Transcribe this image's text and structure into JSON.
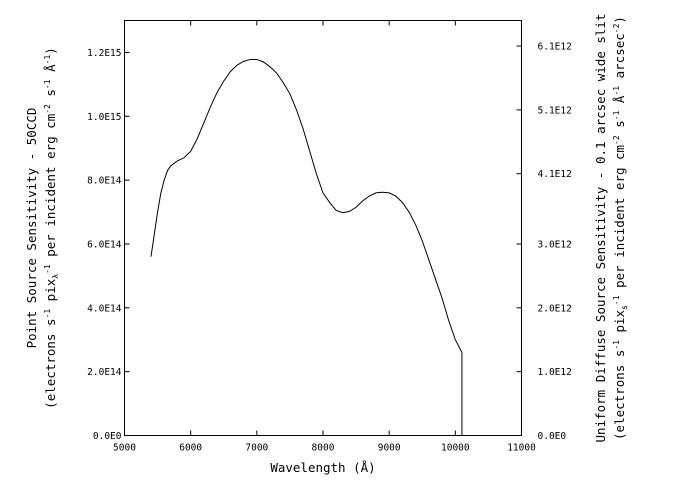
{
  "chart_data": {
    "type": "line",
    "xlabel": "Wavelength (Å)",
    "ylabel_left": {
      "line1": "Point Source Sensitivity - 50CCD",
      "line2": {
        "p1": "(electrons s",
        "sup1": "-1",
        "p2": " pix",
        "sub2": "λ",
        "sup2": "-1",
        "p3": " per incident erg cm",
        "sup3": "-2",
        "p4": " s",
        "sup4": "-1",
        "p5": " Å",
        "sup5": "-1",
        "p6": ")"
      }
    },
    "ylabel_right": {
      "line1": "Uniform Diffuse Source Sensitivity - 0.1 arcsec wide slit",
      "line2": {
        "p1": "(electrons s",
        "sup1": "-1",
        "p2": " pix",
        "sub2": "s",
        "sup2": "-1",
        "p3": " per incident erg cm",
        "sup3": "-2",
        "p4": " s",
        "sup4": "-1",
        "p5": " Å",
        "sup5": "-1",
        "p6": " arcsec",
        "sup6": "-2",
        "p7": ")"
      }
    },
    "xlim": [
      5000,
      11000
    ],
    "ylim_left": [
      0,
      1300000000000000.0
    ],
    "ylim_right": [
      0,
      6500000000000.0
    ],
    "x_ticks": [
      {
        "value": 5000,
        "label": "5000"
      },
      {
        "value": 6000,
        "label": "6000"
      },
      {
        "value": 7000,
        "label": "7000"
      },
      {
        "value": 8000,
        "label": "8000"
      },
      {
        "value": 9000,
        "label": "9000"
      },
      {
        "value": 10000,
        "label": "10000"
      },
      {
        "value": 11000,
        "label": "11000"
      }
    ],
    "y_ticks_left": [
      {
        "value": 0,
        "label": "0.0E0"
      },
      {
        "value": 200000000000000.0,
        "label": "2.0E14"
      },
      {
        "value": 400000000000000.0,
        "label": "4.0E14"
      },
      {
        "value": 600000000000000.0,
        "label": "6.0E14"
      },
      {
        "value": 800000000000000.0,
        "label": "8.0E14"
      },
      {
        "value": 1000000000000000.0,
        "label": "1.0E15"
      },
      {
        "value": 1200000000000000.0,
        "label": "1.2E15"
      }
    ],
    "y_ticks_right": [
      {
        "value": 0,
        "label": "0.0E0"
      },
      {
        "value": 1000000000000.0,
        "label": "1.0E12"
      },
      {
        "value": 2000000000000.0,
        "label": "2.0E12"
      },
      {
        "value": 3000000000000.0,
        "label": "3.0E12"
      },
      {
        "value": 4100000000000.0,
        "label": "4.1E12"
      },
      {
        "value": 5100000000000.0,
        "label": "5.1E12"
      },
      {
        "value": 6100000000000.0,
        "label": "6.1E12"
      }
    ],
    "grid": false,
    "series": [
      {
        "x": [
          5400,
          5450,
          5500,
          5550,
          5600,
          5650,
          5700,
          5800,
          5900,
          6000,
          6100,
          6200,
          6300,
          6400,
          6500,
          6600,
          6700,
          6800,
          6900,
          7000,
          7100,
          7200,
          7300,
          7400,
          7500,
          7600,
          7700,
          7800,
          7900,
          8000,
          8100,
          8200,
          8300,
          8400,
          8500,
          8600,
          8700,
          8800,
          8900,
          9000,
          9100,
          9200,
          9300,
          9400,
          9500,
          9600,
          9700,
          9800,
          9900,
          10000,
          10100,
          10100
        ],
        "y": [
          560000000000000.0,
          630000000000000.0,
          700000000000000.0,
          760000000000000.0,
          800000000000000.0,
          830000000000000.0,
          845000000000000.0,
          860000000000000.0,
          870000000000000.0,
          890000000000000.0,
          930000000000000.0,
          980000000000000.0,
          1030000000000000.0,
          1075000000000000.0,
          1110000000000000.0,
          1140000000000000.0,
          1160000000000000.0,
          1172000000000000.0,
          1178000000000000.0,
          1178000000000000.0,
          1170000000000000.0,
          1155000000000000.0,
          1135000000000000.0,
          1105000000000000.0,
          1070000000000000.0,
          1020000000000000.0,
          960000000000000.0,
          890000000000000.0,
          820000000000000.0,
          760000000000000.0,
          730000000000000.0,
          705000000000000.0,
          698000000000000.0,
          702000000000000.0,
          715000000000000.0,
          735000000000000.0,
          750000000000000.0,
          760000000000000.0,
          762000000000000.0,
          760000000000000.0,
          750000000000000.0,
          730000000000000.0,
          700000000000000.0,
          660000000000000.0,
          610000000000000.0,
          550000000000000.0,
          490000000000000.0,
          430000000000000.0,
          360000000000000.0,
          300000000000000.0,
          260000000000000.0,
          0
        ]
      }
    ]
  }
}
